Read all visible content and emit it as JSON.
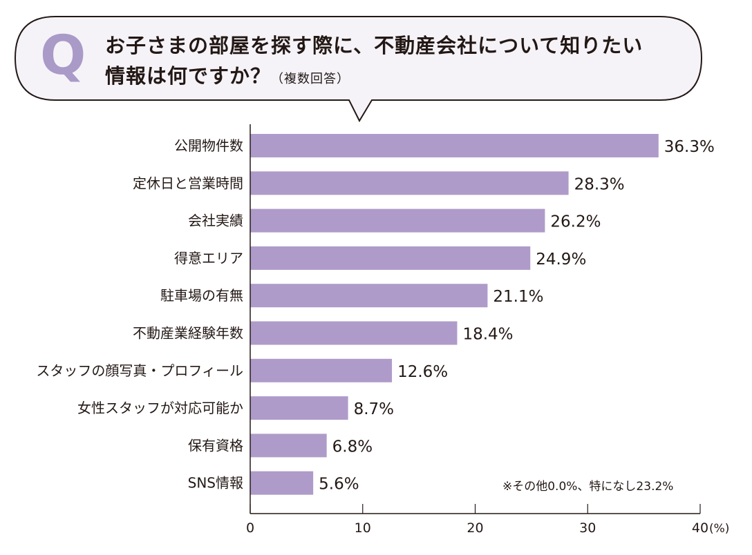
{
  "question": {
    "mark": "Q",
    "line1": "お子さまの部屋を探す際に、不動産会社について知りたい",
    "line2": "情報は何ですか？",
    "note": "（複数回答）"
  },
  "footnote": "※その他0.0%、特になし23.2%",
  "colors": {
    "bar": "#af9bc9",
    "q_mark": "#a99ac8",
    "bubble_fill": "#f5f3f8",
    "text": "#231815"
  },
  "chart_data": {
    "type": "bar",
    "orientation": "horizontal",
    "categories": [
      "公開物件数",
      "定休日と営業時間",
      "会社実績",
      "得意エリア",
      "駐車場の有無",
      "不動産業経験年数",
      "スタッフの顔写真・プロフィール",
      "女性スタッフが対応可能か",
      "保有資格",
      "SNS情報"
    ],
    "values": [
      36.3,
      28.3,
      26.2,
      24.9,
      21.1,
      18.4,
      12.6,
      8.7,
      6.8,
      5.6
    ],
    "value_labels": [
      "36.3%",
      "28.3%",
      "26.2%",
      "24.9%",
      "21.1%",
      "18.4%",
      "12.6%",
      "8.7%",
      "6.8%",
      "5.6%"
    ],
    "xlim": [
      0,
      40
    ],
    "xticks": [
      0,
      10,
      20,
      30,
      40
    ],
    "xtick_labels": [
      "0",
      "10",
      "20",
      "30",
      "40"
    ],
    "xunit": "(%)",
    "grid": false
  }
}
